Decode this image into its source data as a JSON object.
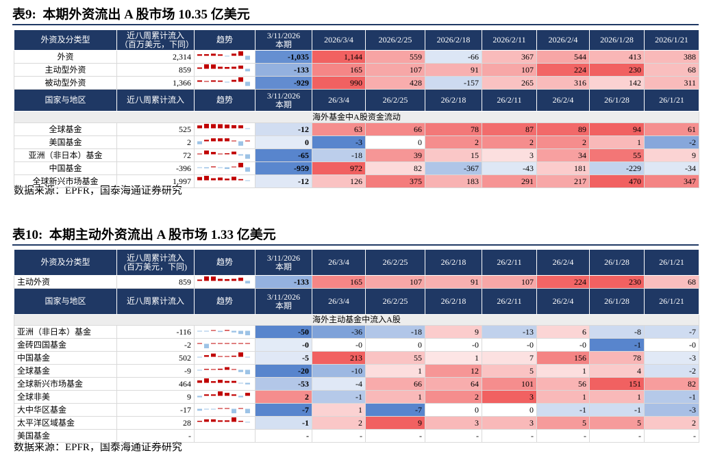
{
  "tables": [
    {
      "title": "表9:  本期外资流出 A 股市场 10.35 亿美元",
      "header1": [
        "外资及分类型",
        "近八周累计流入\n（百万美元，下同）",
        "趋势",
        "3/11/2026\n本期",
        "2026/3/4",
        "2026/2/25",
        "2026/2/18",
        "2026/2/11",
        "2026/2/4",
        "2026/1/28",
        "2026/1/21"
      ],
      "rows1": [
        [
          "外资",
          "2,314",
          "-1,035",
          "1,144",
          "559",
          "-66",
          "367",
          "544",
          "413",
          "388"
        ],
        [
          "主动型外资",
          "859",
          "-133",
          "165",
          "107",
          "91",
          "107",
          "224",
          "230",
          "68"
        ],
        [
          "被动型外资",
          "1,366",
          "-929",
          "990",
          "428",
          "-157",
          "265",
          "316",
          "142",
          "311"
        ]
      ],
      "header2": [
        "国家与地区",
        "近八周累计流入",
        "趋势",
        "3/11/2026\n本期",
        "26/3/4",
        "26/2/25",
        "26/2/18",
        "26/2/11",
        "26/2/4",
        "26/1/28",
        "26/1/21"
      ],
      "section": "海外基金中A股资金流动",
      "rows2": [
        [
          "全球基金",
          "525",
          "-12",
          "63",
          "66",
          "78",
          "87",
          "89",
          "94",
          "61"
        ],
        [
          "美国基金",
          "2",
          "0",
          "-3",
          "0",
          "2",
          "2",
          "2",
          "1",
          "-2"
        ],
        [
          "亚洲（非日本）基金",
          "72",
          "-65",
          "-18",
          "39",
          "15",
          "3",
          "34",
          "55",
          "9"
        ],
        [
          "中国基金",
          "-396",
          "-959",
          "972",
          "82",
          "-367",
          "-43",
          "181",
          "-229",
          "-34"
        ],
        [
          "全球新兴市场基金",
          "1,997",
          "-12",
          "126",
          "375",
          "183",
          "291",
          "217",
          "470",
          "347"
        ]
      ],
      "source": "数据来源：EPFR，国泰海通证券研究"
    },
    {
      "title": "表10:  本期主动外资流出 A 股市场 1.33 亿美元",
      "header1": [
        "外资及分类型",
        "近八周累计流入\n(百万美元，下同)",
        "趋势",
        "3/11/2026\n本期",
        "26/3/4",
        "26/2/25",
        "26/2/18",
        "26/2/11",
        "26/2/4",
        "26/1/28",
        "26/1/21"
      ],
      "rows1": [
        [
          "主动外资",
          "859",
          "-133",
          "165",
          "107",
          "91",
          "107",
          "224",
          "230",
          "68"
        ]
      ],
      "header2": [
        "国家与地区",
        "近八周累计流入",
        "趋势",
        "3/11/2026\n本期",
        "26/3/4",
        "26/2/25",
        "26/2/18",
        "26/2/11",
        "26/2/4",
        "26/1/28",
        "26/1/21"
      ],
      "section": "海外主动基金中流入A股",
      "rows2": [
        [
          "亚洲（非日本）基金",
          "-116",
          "-50",
          "-36",
          "-18",
          "9",
          "-13",
          "6",
          "-8",
          "-7"
        ],
        [
          "金砖四国基金",
          "-2",
          "-0",
          "-0",
          "0",
          "-0",
          "-0",
          "-0",
          "-1",
          "-0"
        ],
        [
          "中国基金",
          "502",
          "-5",
          "213",
          "55",
          "1",
          "7",
          "156",
          "78",
          "-3"
        ],
        [
          "全球基金",
          "-9",
          "-20",
          "-10",
          "1",
          "12",
          "5",
          "1",
          "4",
          "-2"
        ],
        [
          "全球新兴市场基金",
          "464",
          "-53",
          "-4",
          "66",
          "64",
          "101",
          "56",
          "151",
          "82"
        ],
        [
          "全球非美",
          "9",
          "2",
          "-1",
          "1",
          "2",
          "3",
          "1",
          "1",
          "-1"
        ],
        [
          "大中华区基金",
          "-17",
          "-7",
          "1",
          "-7",
          "0",
          "0",
          "-1",
          "-1",
          "-3"
        ],
        [
          "太平洋区域基金",
          "28",
          "-1",
          "2",
          "9",
          "3",
          "3",
          "5",
          "5",
          "2"
        ],
        [
          "美国基金",
          "-",
          "-",
          "-",
          "-",
          "-",
          "-",
          "-",
          "-",
          "-"
        ]
      ],
      "source": "数据来源：EPFR，国泰海通证券研究"
    }
  ]
}
